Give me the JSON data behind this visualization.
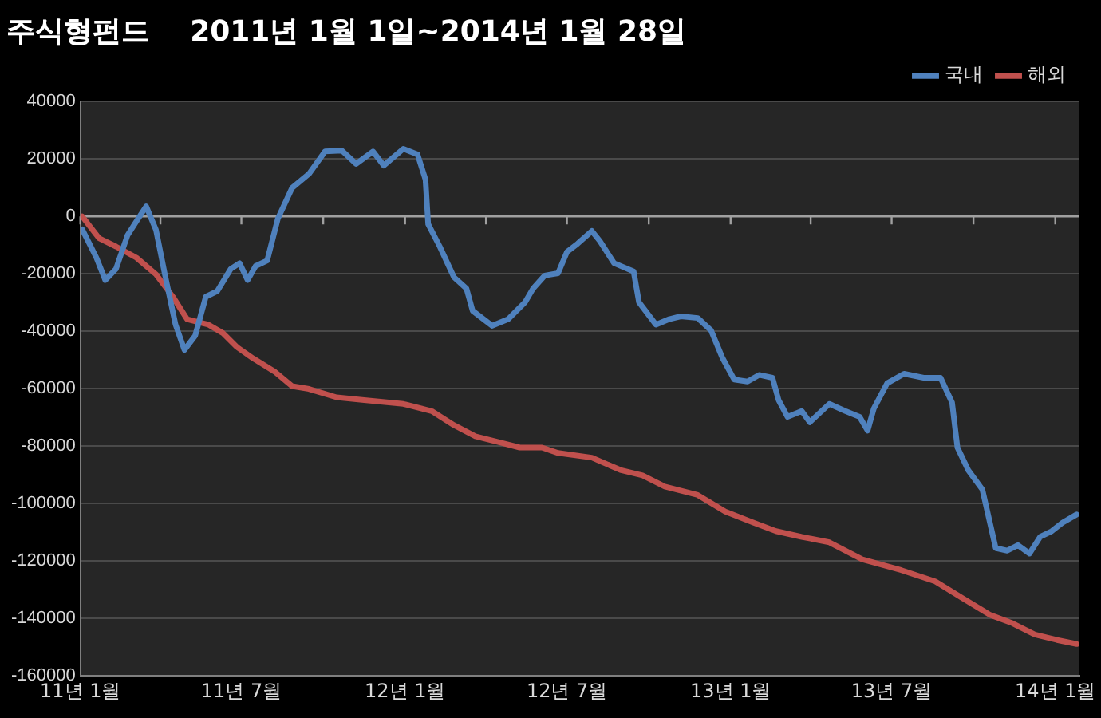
{
  "chart_data": {
    "type": "line",
    "title": "주식형펀드    2011년 1월 1일~2014년 1월 28일",
    "series": [
      {
        "name": "국내",
        "color": "#4f81bd",
        "x": [
          "2011-01-03",
          "2011-01-19",
          "2011-01-29",
          "2011-02-10",
          "2011-02-23",
          "2011-03-05",
          "2011-03-16",
          "2011-03-27",
          "2011-04-06",
          "2011-04-18",
          "2011-04-28",
          "2011-05-10",
          "2011-05-22",
          "2011-06-04",
          "2011-06-19",
          "2011-06-29",
          "2011-07-08",
          "2011-07-17",
          "2011-07-30",
          "2011-08-11",
          "2011-08-27",
          "2011-09-15",
          "2011-10-03",
          "2011-10-22",
          "2011-11-07",
          "2011-11-26",
          "2011-12-08",
          "2011-12-30",
          "2012-01-15",
          "2012-01-24",
          "2012-01-27",
          "2012-02-09",
          "2012-02-25",
          "2012-03-10",
          "2012-03-17",
          "2012-04-08",
          "2012-04-26",
          "2012-05-15",
          "2012-05-24",
          "2012-06-06",
          "2012-06-21",
          "2012-07-01",
          "2012-07-13",
          "2012-07-29",
          "2012-08-07",
          "2012-08-23",
          "2012-09-14",
          "2012-09-20",
          "2012-10-09",
          "2012-10-24",
          "2012-11-06",
          "2012-11-25",
          "2012-12-10",
          "2012-12-23",
          "2013-01-05",
          "2013-01-20",
          "2013-02-02",
          "2013-02-17",
          "2013-02-24",
          "2013-03-06",
          "2013-03-22",
          "2013-03-31",
          "2013-04-22",
          "2013-05-10",
          "2013-05-26",
          "2013-06-04",
          "2013-06-11",
          "2013-06-26",
          "2013-07-15",
          "2013-08-06",
          "2013-08-25",
          "2013-09-07",
          "2013-09-13",
          "2013-09-25",
          "2013-10-11",
          "2013-10-26",
          "2013-11-08",
          "2013-11-20",
          "2013-12-03",
          "2013-12-15",
          "2013-12-28",
          "2014-01-09",
          "2014-01-25"
        ],
        "values": [
          -4500,
          -14400,
          -22200,
          -18300,
          -6600,
          -1700,
          3500,
          -4700,
          -20200,
          -37700,
          -46500,
          -41600,
          -28000,
          -26000,
          -18300,
          -16300,
          -22200,
          -17300,
          -15400,
          -800,
          9900,
          14800,
          22600,
          22900,
          18300,
          22600,
          17700,
          23500,
          21600,
          12800,
          -2700,
          -10500,
          -21200,
          -25100,
          -32900,
          -38100,
          -35800,
          -29900,
          -25100,
          -20600,
          -19800,
          -12400,
          -9500,
          -5100,
          -8600,
          -16300,
          -19200,
          -29900,
          -37700,
          -35800,
          -34800,
          -35400,
          -39700,
          -49400,
          -56800,
          -57500,
          -55200,
          -56200,
          -64000,
          -69800,
          -67800,
          -71700,
          -65300,
          -67800,
          -69800,
          -74600,
          -66900,
          -58100,
          -54800,
          -56200,
          -56200,
          -64900,
          -80500,
          -88300,
          -95100,
          -115500,
          -116400,
          -114500,
          -117400,
          -111600,
          -109600,
          -106700,
          -103800
        ]
      },
      {
        "name": "해외",
        "color": "#c0504d",
        "x": [
          "2011-01-03",
          "2011-01-22",
          "2011-02-10",
          "2011-03-05",
          "2011-03-27",
          "2011-04-15",
          "2011-05-01",
          "2011-05-25",
          "2011-06-10",
          "2011-06-26",
          "2011-07-14",
          "2011-08-08",
          "2011-08-27",
          "2011-09-15",
          "2011-10-16",
          "2011-11-16",
          "2011-12-30",
          "2012-01-31",
          "2012-02-25",
          "2012-03-20",
          "2012-04-14",
          "2012-05-09",
          "2012-06-03",
          "2012-06-21",
          "2012-07-29",
          "2012-08-30",
          "2012-09-24",
          "2012-10-19",
          "2012-11-25",
          "2012-12-26",
          "2013-01-27",
          "2013-02-21",
          "2013-03-22",
          "2013-04-22",
          "2013-05-29",
          "2013-07-12",
          "2013-08-19",
          "2013-09-19",
          "2013-10-20",
          "2013-11-14",
          "2013-12-09",
          "2014-01-03",
          "2014-01-25"
        ],
        "values": [
          0,
          -7600,
          -10500,
          -14400,
          -20200,
          -28000,
          -35800,
          -37700,
          -40600,
          -45500,
          -49400,
          -54200,
          -59100,
          -60100,
          -63000,
          -64000,
          -65300,
          -67800,
          -72700,
          -76600,
          -78500,
          -80500,
          -80500,
          -82400,
          -84000,
          -88300,
          -90200,
          -94100,
          -97000,
          -102800,
          -106700,
          -109600,
          -111600,
          -113500,
          -119400,
          -123200,
          -127100,
          -133000,
          -138800,
          -141700,
          -145600,
          -147500,
          -148900
        ]
      }
    ],
    "xlim": [
      "2011-01-01",
      "2014-01-28"
    ],
    "xticks": [
      {
        "value": "2011-01-01",
        "label": "11년 1월"
      },
      {
        "value": "2011-04-01",
        "label": null
      },
      {
        "value": "2011-07-01",
        "label": "11년 7월"
      },
      {
        "value": "2011-10-01",
        "label": null
      },
      {
        "value": "2012-01-01",
        "label": "12년 1월"
      },
      {
        "value": "2012-04-01",
        "label": null
      },
      {
        "value": "2012-07-01",
        "label": "12년 7월"
      },
      {
        "value": "2012-10-01",
        "label": null
      },
      {
        "value": "2013-01-01",
        "label": "13년 1월"
      },
      {
        "value": "2013-04-01",
        "label": null
      },
      {
        "value": "2013-07-01",
        "label": "13년 7월"
      },
      {
        "value": "2013-10-01",
        "label": null
      },
      {
        "value": "2014-01-01",
        "label": "14년 1월"
      }
    ],
    "ylim": [
      -160000,
      40000
    ],
    "yticks": [
      -160000,
      -140000,
      -120000,
      -100000,
      -80000,
      -60000,
      -40000,
      -20000,
      0,
      20000,
      40000
    ],
    "grid": "y",
    "legend": "top right",
    "marker": "none",
    "line_style": "solid"
  }
}
